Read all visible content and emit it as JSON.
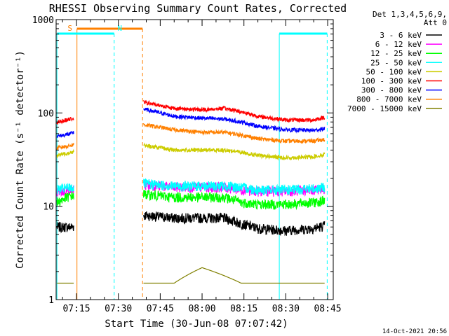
{
  "chart_data": {
    "type": "line",
    "title": "RHESSI Observing Summary Count Rates, Corrected",
    "xlabel": "Start Time (30-Jun-08 07:07:42)",
    "ylabel": "Corrected Count Rate (s⁻¹ detector⁻¹)",
    "yscale": "log",
    "ylim": [
      1,
      1000
    ],
    "xlim": [
      "07:07:42",
      "08:47:00"
    ],
    "x_ticks": [
      "07:15",
      "07:30",
      "07:45",
      "08:00",
      "08:15",
      "08:30",
      "08:45"
    ],
    "y_ticks": [
      "1",
      "10",
      "100",
      "1000"
    ],
    "grid": false,
    "legend": {
      "placement": "right",
      "header_lines": [
        "Det 1,3,4,5,6,9,",
        "Att 0"
      ]
    },
    "footer_timestamp": "14-Oct-2021 20:56",
    "data_gaps": [
      [
        "07:14:00",
        "07:39:00"
      ],
      [
        "08:45:00",
        "08:47:00"
      ]
    ],
    "annotations": [
      {
        "label": "S",
        "start": "07:15:10",
        "end": "07:38:40",
        "color": "#ff8000",
        "kind": "SAA"
      },
      {
        "label": "N",
        "start": "07:08:00",
        "end": "07:28:30",
        "color": "#00ffff",
        "kind": "night"
      },
      {
        "label": "",
        "start": "08:27:40",
        "end": "08:44:50",
        "color": "#00ffff",
        "kind": "night"
      }
    ],
    "series": [
      {
        "name": "3 - 6 keV",
        "color": "#000000",
        "x": [
          "07:08",
          "07:13",
          "07:39",
          "07:50",
          "08:00",
          "08:08",
          "08:14",
          "08:20",
          "08:30",
          "08:40",
          "08:44"
        ],
        "values": [
          6.0,
          6.0,
          8.0,
          7.5,
          7.5,
          7.5,
          6.5,
          5.8,
          5.5,
          5.8,
          6.2
        ]
      },
      {
        "name": "6 - 12 keV",
        "color": "#ff00ff",
        "x": [
          "07:08",
          "07:13",
          "07:39",
          "07:50",
          "08:00",
          "08:08",
          "08:14",
          "08:20",
          "08:30",
          "08:40",
          "08:44"
        ],
        "values": [
          14,
          15,
          17,
          16,
          16,
          16,
          15,
          14.5,
          14.5,
          15,
          15.5
        ]
      },
      {
        "name": "12 - 25 keV",
        "color": "#00ff00",
        "x": [
          "07:08",
          "07:13",
          "07:39",
          "07:50",
          "08:00",
          "08:08",
          "08:14",
          "08:20",
          "08:30",
          "08:40",
          "08:44"
        ],
        "values": [
          11,
          13,
          13.5,
          12.5,
          12.5,
          12.5,
          11,
          10.5,
          10.5,
          11,
          11.5
        ]
      },
      {
        "name": "25 - 50 keV",
        "color": "#00ffff",
        "x": [
          "07:08",
          "07:13",
          "07:39",
          "07:50",
          "08:00",
          "08:08",
          "08:14",
          "08:20",
          "08:30",
          "08:40",
          "08:44"
        ],
        "values": [
          15,
          16,
          17.5,
          16.5,
          16.5,
          16.5,
          16,
          15,
          15,
          15.5,
          16
        ]
      },
      {
        "name": "50 - 100 keV",
        "color": "#cccc00",
        "x": [
          "07:08",
          "07:13",
          "07:39",
          "07:50",
          "08:00",
          "08:08",
          "08:14",
          "08:20",
          "08:30",
          "08:40",
          "08:44"
        ],
        "values": [
          35,
          38,
          45,
          40,
          40,
          40,
          38,
          35,
          33,
          34,
          36
        ]
      },
      {
        "name": "100 - 300 keV",
        "color": "#ff0000",
        "x": [
          "07:08",
          "07:13",
          "07:39",
          "07:50",
          "08:00",
          "08:08",
          "08:14",
          "08:20",
          "08:30",
          "08:40",
          "08:44"
        ],
        "values": [
          80,
          86,
          130,
          112,
          108,
          112,
          103,
          92,
          84,
          84,
          90
        ]
      },
      {
        "name": "300 - 800 keV",
        "color": "#0000ff",
        "x": [
          "07:08",
          "07:13",
          "07:39",
          "07:50",
          "08:00",
          "08:08",
          "08:14",
          "08:20",
          "08:30",
          "08:40",
          "08:44"
        ],
        "values": [
          56,
          60,
          110,
          92,
          88,
          86,
          80,
          72,
          66,
          65,
          68
        ]
      },
      {
        "name": "800 - 7000 keV",
        "color": "#ff8000",
        "x": [
          "07:08",
          "07:13",
          "07:39",
          "07:50",
          "08:00",
          "08:08",
          "08:14",
          "08:20",
          "08:30",
          "08:40",
          "08:44"
        ],
        "values": [
          42,
          45,
          75,
          66,
          62,
          62,
          58,
          53,
          50,
          50,
          52
        ]
      },
      {
        "name": "7000 - 15000 keV",
        "color": "#808000",
        "x": [
          "07:08",
          "07:13",
          "07:39",
          "07:50",
          "08:00",
          "08:08",
          "08:14",
          "08:20",
          "08:30",
          "08:40",
          "08:44"
        ],
        "values": [
          1.5,
          1.5,
          1.5,
          1.5,
          2.2,
          1.8,
          1.5,
          1.5,
          1.5,
          1.5,
          1.5
        ]
      }
    ]
  }
}
